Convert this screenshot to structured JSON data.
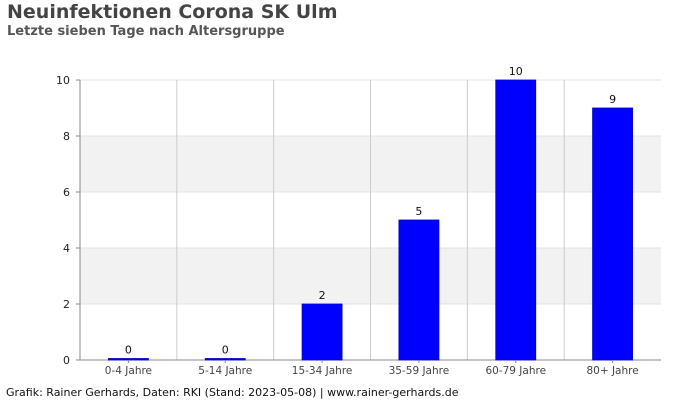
{
  "header": {
    "title": "Neuinfektionen Corona SK Ulm",
    "subtitle": "Letzte sieben Tage nach Altersgruppe"
  },
  "footer": {
    "credit": "Grafik: Rainer Gerhards, Daten: RKI (Stand: 2023-05-08) | www.rainer-gerhards.de"
  },
  "chart_data": {
    "type": "bar",
    "title": "Neuinfektionen Corona SK Ulm",
    "subtitle": "Letzte sieben Tage nach Altersgruppe",
    "categories": [
      "0-4 Jahre",
      "5-14 Jahre",
      "15-34 Jahre",
      "35-59 Jahre",
      "60-79 Jahre",
      "80+ Jahre"
    ],
    "values": [
      0,
      0,
      2,
      5,
      10,
      9
    ],
    "xlabel": "",
    "ylabel": "",
    "ylim": [
      0,
      10
    ],
    "yticks": [
      0,
      2,
      4,
      6,
      8,
      10
    ],
    "grid": true,
    "legend": "none",
    "colors": {
      "bar": "#0000ff",
      "band_alt": "#f2f2f2",
      "grid": "#cccccc",
      "axis": "#888888"
    }
  }
}
